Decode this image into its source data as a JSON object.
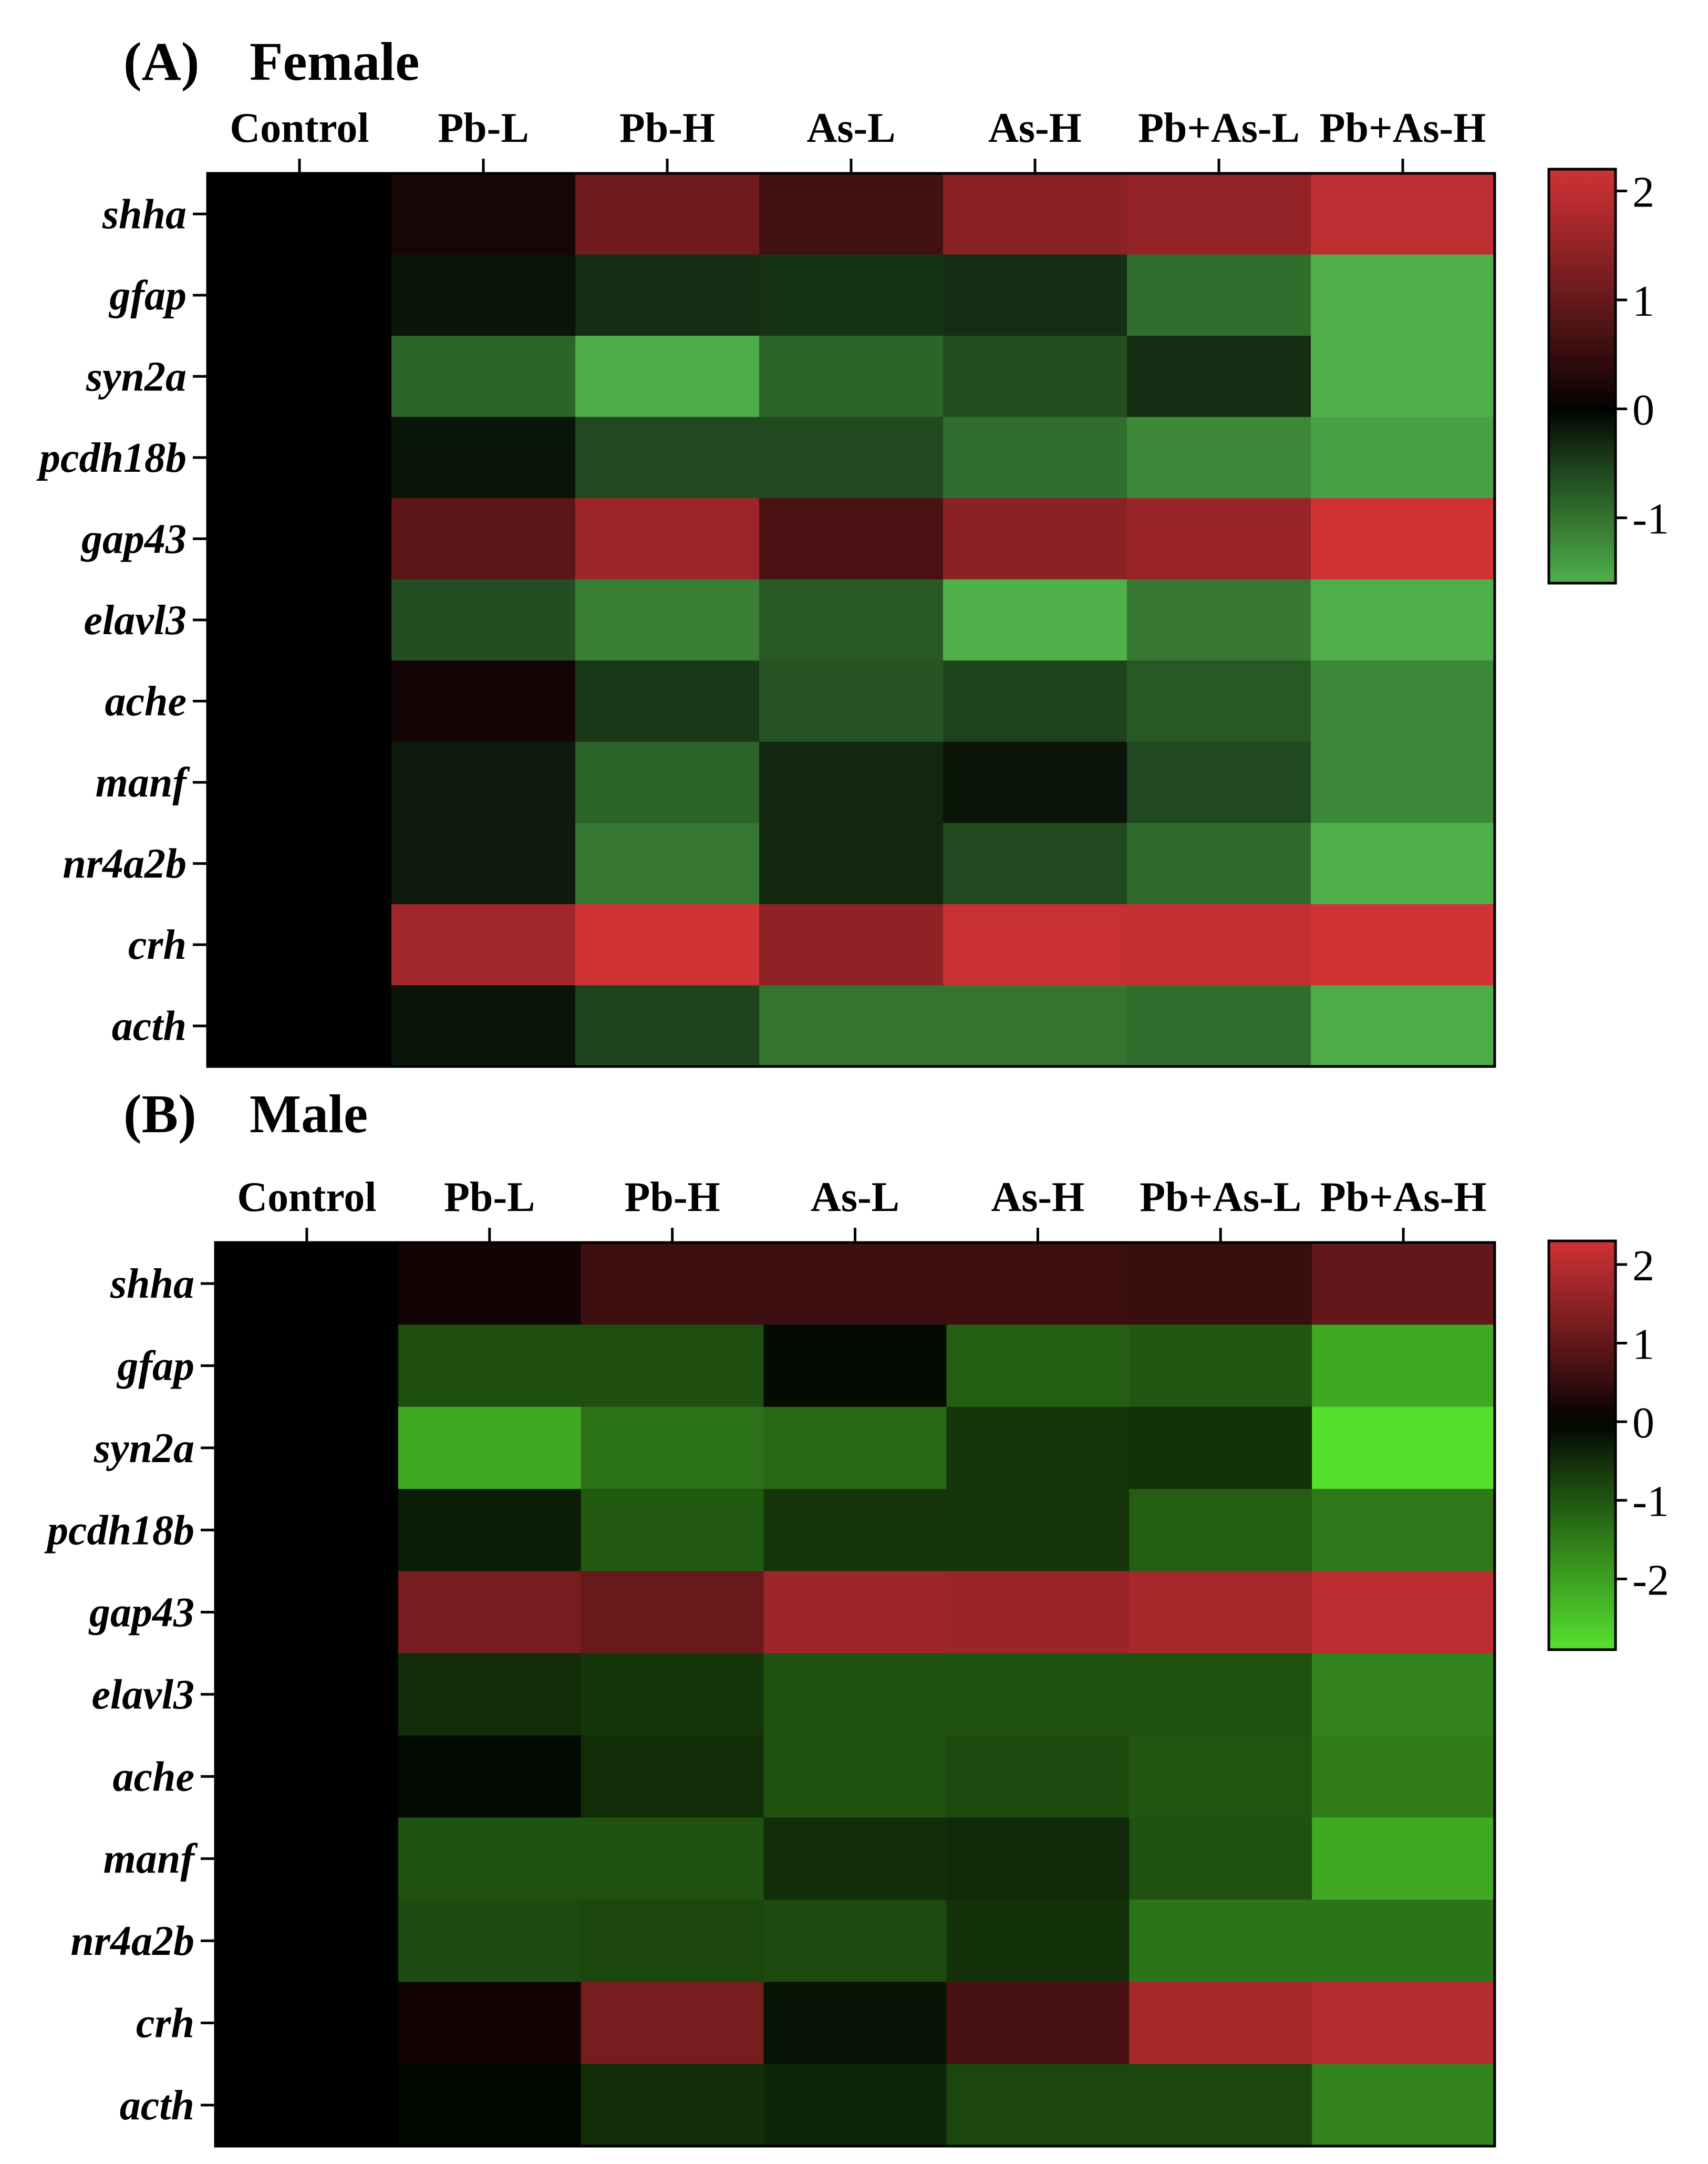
{
  "chart_data": [
    {
      "type": "heatmap",
      "panel_label": "(A)",
      "title": "Female",
      "columns": [
        "Control",
        "Pb-L",
        "Pb-H",
        "As-L",
        "As-H",
        "Pb+As-L",
        "Pb+As-H"
      ],
      "rows": [
        "shha",
        "gfap",
        "syn2a",
        "pcdh18b",
        "gap43",
        "elavl3",
        "ache",
        "manf",
        "nr4a2b",
        "crh",
        "acth"
      ],
      "values": [
        [
          0,
          0.2,
          1.1,
          0.6,
          1.4,
          1.5,
          2.0
        ],
        [
          0,
          -0.15,
          -0.35,
          -0.4,
          -0.35,
          -0.95,
          -1.6
        ],
        [
          0,
          -0.85,
          -1.55,
          -0.85,
          -0.65,
          -0.35,
          -1.6
        ],
        [
          0,
          -0.15,
          -0.6,
          -0.6,
          -0.95,
          -1.2,
          -1.45
        ],
        [
          0,
          0.9,
          1.6,
          0.7,
          1.4,
          1.55,
          2.2
        ],
        [
          0,
          -0.65,
          -1.1,
          -0.75,
          -1.6,
          -1.05,
          -1.6
        ],
        [
          0,
          0.15,
          -0.45,
          -0.7,
          -0.55,
          -0.75,
          -1.2
        ],
        [
          0,
          -0.2,
          -0.85,
          -0.3,
          -0.15,
          -0.6,
          -1.2
        ],
        [
          0,
          -0.2,
          -1.05,
          -0.3,
          -0.6,
          -0.9,
          -1.6
        ],
        [
          0,
          1.65,
          2.2,
          1.45,
          2.1,
          2.05,
          2.2
        ],
        [
          0,
          -0.15,
          -0.55,
          -1.0,
          -1.0,
          -0.95,
          -1.55
        ]
      ],
      "colorbar": {
        "min": -1.6,
        "max": 2.2,
        "ticks": [
          "2",
          "1",
          "0",
          "-1"
        ],
        "tick_values": [
          2,
          1,
          0,
          -1
        ]
      },
      "colors": {
        "low": "#4fb04a",
        "mid": "#000000",
        "high": "#d03236"
      }
    },
    {
      "type": "heatmap",
      "panel_label": "(B)",
      "title": "Male",
      "columns": [
        "Control",
        "Pb-L",
        "Pb-H",
        "As-L",
        "As-H",
        "Pb+As-L",
        "Pb+As-H"
      ],
      "rows": [
        "shha",
        "gfap",
        "syn2a",
        "pcdh18b",
        "gap43",
        "elavl3",
        "ache",
        "manf",
        "nr4a2b",
        "crh",
        "acth"
      ],
      "values": [
        [
          0,
          0.15,
          0.6,
          0.6,
          0.6,
          0.55,
          1.0
        ],
        [
          0,
          -0.9,
          -0.9,
          -0.1,
          -1.1,
          -1.0,
          -2.1
        ],
        [
          0,
          -2.1,
          -1.35,
          -1.25,
          -0.6,
          -0.55,
          -2.9
        ],
        [
          0,
          -0.3,
          -1.05,
          -0.6,
          -0.6,
          -1.1,
          -1.45
        ],
        [
          0,
          1.25,
          1.05,
          1.7,
          1.65,
          1.8,
          2.05
        ],
        [
          0,
          -0.5,
          -0.6,
          -0.95,
          -0.95,
          -0.95,
          -1.6
        ],
        [
          0,
          -0.1,
          -0.5,
          -0.95,
          -0.85,
          -1.0,
          -1.5
        ],
        [
          0,
          -0.95,
          -0.95,
          -0.5,
          -0.45,
          -0.95,
          -2.1
        ],
        [
          0,
          -0.85,
          -0.8,
          -0.85,
          -0.55,
          -1.4,
          -1.4
        ],
        [
          0,
          0.15,
          1.25,
          -0.2,
          0.7,
          1.8,
          2.0
        ],
        [
          0,
          -0.05,
          -0.5,
          -0.4,
          -0.8,
          -0.8,
          -1.6
        ]
      ],
      "colorbar": {
        "min": -2.9,
        "max": 2.3,
        "ticks": [
          "2",
          "1",
          "0",
          "-1",
          "-2"
        ],
        "tick_values": [
          2,
          1,
          0,
          -1,
          -2
        ]
      },
      "colors": {
        "low": "#55e02e",
        "mid": "#000000",
        "high": "#d03236"
      }
    }
  ]
}
